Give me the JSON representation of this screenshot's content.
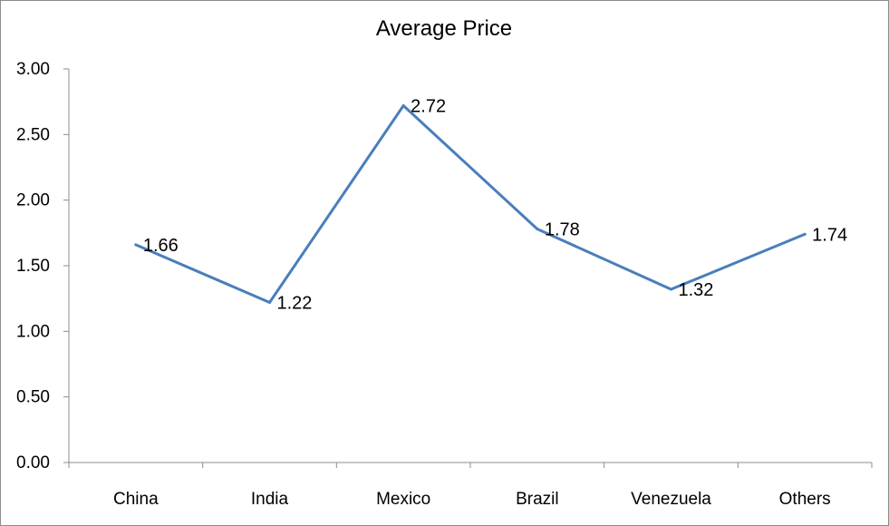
{
  "chart_data": {
    "type": "line",
    "title": "Average Price",
    "xlabel": "",
    "ylabel": "",
    "categories": [
      "China",
      "India",
      "Mexico",
      "Brazil",
      "Venezuela",
      "Others"
    ],
    "series": [
      {
        "values": [
          1.66,
          1.22,
          2.72,
          1.78,
          1.32,
          1.74
        ],
        "labels": [
          "1.66",
          "1.22",
          "2.72",
          "1.78",
          "1.32",
          "1.74"
        ],
        "color": "#4a7ebb"
      }
    ],
    "ylim": [
      0,
      3
    ],
    "yticks": [
      "0.00",
      "0.50",
      "1.00",
      "1.50",
      "2.00",
      "2.50",
      "3.00"
    ],
    "grid": false,
    "legend": "none",
    "axis_color": "#8c8c8c"
  }
}
